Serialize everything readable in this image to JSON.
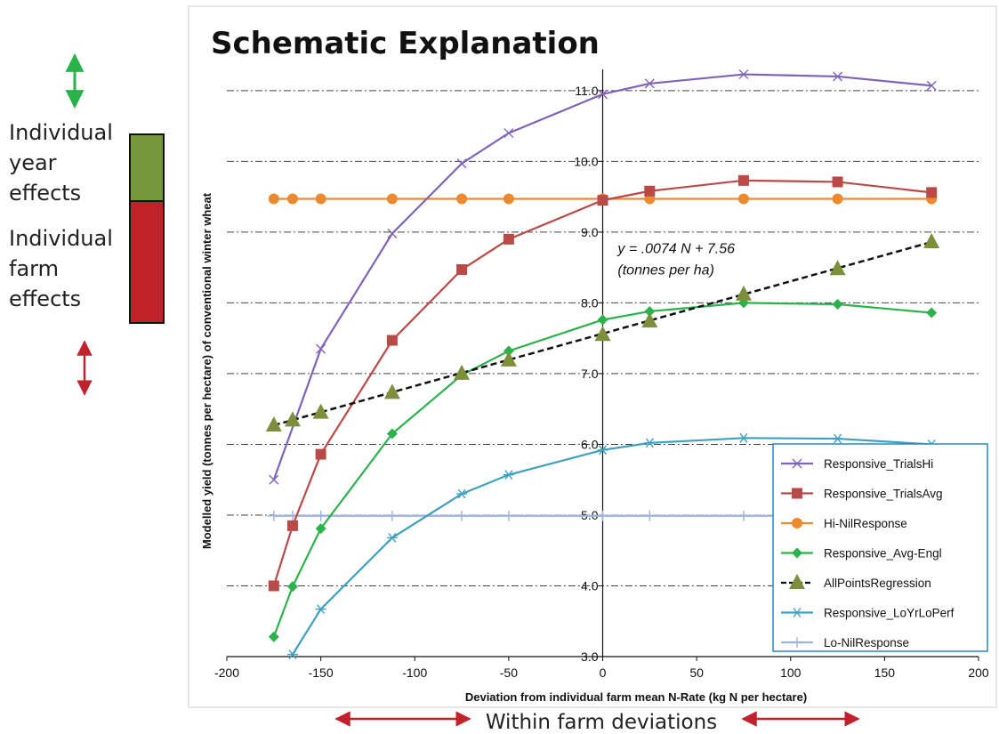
{
  "page": {
    "title": "Schematic Explanation",
    "side_labels": {
      "year_effects": [
        "Individual",
        "year",
        "effects"
      ],
      "farm_effects": [
        "Individual",
        "farm",
        "effects"
      ]
    },
    "bottom_caption": "Within farm deviations",
    "colors": {
      "year_effects_bar": "#76973a",
      "farm_effects_bar": "#c0212b",
      "year_arrow": "#2ab24a",
      "farm_arrow": "#c0212b",
      "caption_arrow": "#c0212b"
    }
  },
  "chart_data": {
    "type": "line",
    "xlabel": "Deviation from individual farm mean N-Rate (kg N per hectare)",
    "ylabel": "Modelled yield (tonnes per hectare) of conventional winter wheat",
    "xlim": [
      -200,
      200
    ],
    "ylim": [
      3.0,
      11.3
    ],
    "x_ticks": [
      "-200",
      "-150",
      "-100",
      "-50",
      "0",
      "50",
      "100",
      "150",
      "200"
    ],
    "y_ticks": [
      "3.0",
      "4.0",
      "5.0",
      "6.0",
      "7.0",
      "8.0",
      "9.0",
      "10.0",
      "11.0"
    ],
    "grid": "horizontal dash-dot",
    "legend_position": "bottom-right",
    "annotation": {
      "line1": "y = .0074 N + 7.56",
      "line2": "(tonnes per ha)",
      "x": 8,
      "y": 8.7
    },
    "series": [
      {
        "name": "Responsive_TrialsHi",
        "color": "#7f63b8",
        "marker": "x",
        "points": [
          [
            -175,
            5.5
          ],
          [
            -150,
            7.35
          ],
          [
            -112,
            8.98
          ],
          [
            -75,
            9.97
          ],
          [
            -50,
            10.4
          ],
          [
            0,
            10.95
          ],
          [
            25,
            11.1
          ],
          [
            75,
            11.23
          ],
          [
            125,
            11.2
          ],
          [
            175,
            11.07
          ]
        ]
      },
      {
        "name": "Responsive_TrialsAvg",
        "color": "#b94a48",
        "marker": "square",
        "points": [
          [
            -175,
            4.0
          ],
          [
            -165,
            4.85
          ],
          [
            -150,
            5.86
          ],
          [
            -112,
            7.47
          ],
          [
            -75,
            8.47
          ],
          [
            -50,
            8.9
          ],
          [
            0,
            9.45
          ],
          [
            25,
            9.58
          ],
          [
            75,
            9.73
          ],
          [
            125,
            9.71
          ],
          [
            175,
            9.56
          ]
        ]
      },
      {
        "name": "Hi-NilResponse",
        "color": "#ed8a2f",
        "marker": "circle",
        "points": [
          [
            -175,
            9.47
          ],
          [
            -165,
            9.47
          ],
          [
            -150,
            9.47
          ],
          [
            -112,
            9.47
          ],
          [
            -75,
            9.47
          ],
          [
            -50,
            9.47
          ],
          [
            0,
            9.47
          ],
          [
            25,
            9.47
          ],
          [
            75,
            9.47
          ],
          [
            125,
            9.47
          ],
          [
            175,
            9.47
          ]
        ]
      },
      {
        "name": "Responsive_Avg-Engl",
        "color": "#2bb24c",
        "marker": "diamond",
        "points": [
          [
            -175,
            3.28
          ],
          [
            -165,
            3.99
          ],
          [
            -150,
            4.81
          ],
          [
            -112,
            6.15
          ],
          [
            -75,
            6.98
          ],
          [
            -50,
            7.32
          ],
          [
            0,
            7.76
          ],
          [
            25,
            7.88
          ],
          [
            75,
            8.0
          ],
          [
            125,
            7.98
          ],
          [
            175,
            7.86
          ]
        ]
      },
      {
        "name": "AllPointsRegression",
        "color": "#111111",
        "marker": "triangle",
        "marker_color": "#7d8f3a",
        "dashed": true,
        "line_points": [
          [
            -175,
            6.27
          ],
          [
            175,
            8.86
          ]
        ],
        "points": [
          [
            -175,
            6.27
          ],
          [
            -165,
            6.34
          ],
          [
            -150,
            6.45
          ],
          [
            -112,
            6.73
          ],
          [
            -75,
            7.0
          ],
          [
            -50,
            7.19
          ],
          [
            0,
            7.55
          ],
          [
            25,
            7.74
          ],
          [
            75,
            8.12
          ],
          [
            125,
            8.48
          ],
          [
            175,
            8.86
          ]
        ]
      },
      {
        "name": "Responsive_LoYrLoPerf",
        "color": "#3fa0c0",
        "marker": "asterisk",
        "points": [
          [
            -165,
            3.03
          ],
          [
            -150,
            3.67
          ],
          [
            -112,
            4.68
          ],
          [
            -75,
            5.3
          ],
          [
            -50,
            5.57
          ],
          [
            0,
            5.92
          ],
          [
            25,
            6.02
          ],
          [
            75,
            6.09
          ],
          [
            125,
            6.08
          ],
          [
            175,
            6.0
          ]
        ]
      },
      {
        "name": "Lo-NilResponse",
        "color": "#9db3de",
        "marker": "plus",
        "points": [
          [
            -175,
            4.99
          ],
          [
            -165,
            4.99
          ],
          [
            -150,
            4.99
          ],
          [
            -112,
            4.99
          ],
          [
            -75,
            4.99
          ],
          [
            -50,
            4.99
          ],
          [
            0,
            4.99
          ],
          [
            25,
            4.99
          ],
          [
            75,
            4.99
          ],
          [
            125,
            4.99
          ],
          [
            175,
            4.99
          ]
        ]
      }
    ]
  }
}
